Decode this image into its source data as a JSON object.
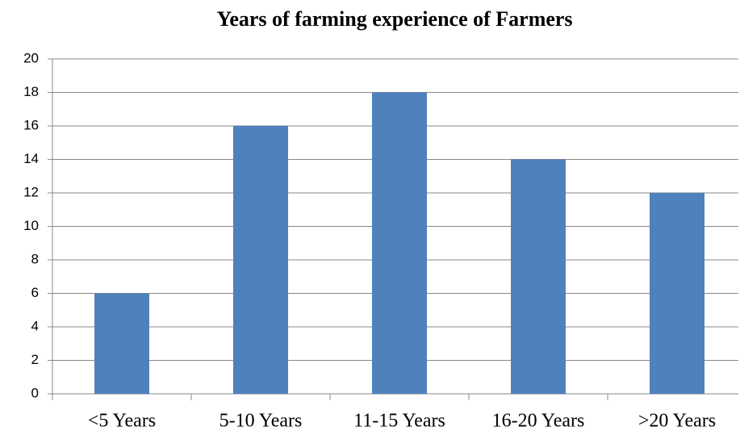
{
  "chart_data": {
    "type": "bar",
    "title": "Years of farming experience of Farmers",
    "categories": [
      "<5 Years",
      "5-10 Years",
      "11-15 Years",
      "16-20 Years",
      ">20 Years"
    ],
    "values": [
      6,
      16,
      18,
      14,
      12
    ],
    "color": "#4f81bd",
    "ylim": [
      0,
      20
    ],
    "yticks": [
      0,
      2,
      4,
      6,
      8,
      10,
      12,
      14,
      16,
      18,
      20
    ],
    "grid": true
  }
}
